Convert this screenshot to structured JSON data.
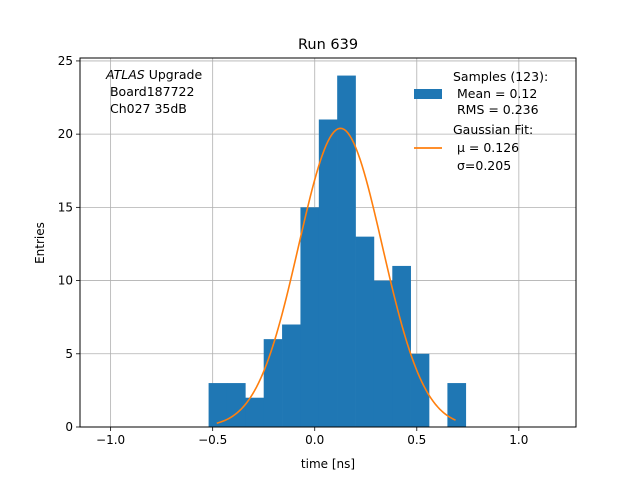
{
  "chart_data": {
    "type": "bar",
    "title": "Run 639",
    "xlabel": "time [ns]",
    "ylabel": "Entries",
    "xlim": [
      -1.15,
      1.28
    ],
    "ylim": [
      0,
      25.2
    ],
    "xticks": [
      -1.0,
      -0.5,
      0.0,
      0.5,
      1.0
    ],
    "xtick_labels": [
      "−1.0",
      "−0.5",
      "0.0",
      "0.5",
      "1.0"
    ],
    "yticks": [
      0,
      5,
      10,
      15,
      20,
      25
    ],
    "ytick_labels": [
      "0",
      "5",
      "10",
      "15",
      "20",
      "25"
    ],
    "grid": true,
    "histogram": {
      "name": "Samples",
      "color": "#1f77b4",
      "bin_edges": [
        -0.52,
        -0.43,
        -0.34,
        -0.25,
        -0.16,
        -0.07,
        0.02,
        0.11,
        0.2,
        0.29,
        0.38,
        0.47,
        0.56,
        0.65,
        0.74
      ],
      "counts": [
        3,
        3,
        2,
        6,
        7,
        15,
        21,
        24,
        13,
        10,
        11,
        5,
        0,
        3
      ]
    },
    "fit": {
      "name": "Gaussian Fit",
      "color": "#ff7f0e",
      "mu": 0.126,
      "sigma": 0.205,
      "amplitude": 20.4,
      "x_range": [
        -0.48,
        0.69
      ]
    },
    "legend": {
      "placement": "top-right",
      "entries": [
        {
          "lines": [
            "Samples (123):",
            " Mean = 0.12",
            " RMS = 0.236"
          ]
        },
        {
          "lines": [
            "Gaussian Fit:",
            " μ = 0.126",
            " σ=0.205"
          ]
        }
      ]
    },
    "annotation": {
      "placement": "top-left",
      "atlas": "ATLAS",
      "line1_rest": " Upgrade",
      "line2": " Board187722",
      "line3": " Ch027 35dB"
    }
  }
}
